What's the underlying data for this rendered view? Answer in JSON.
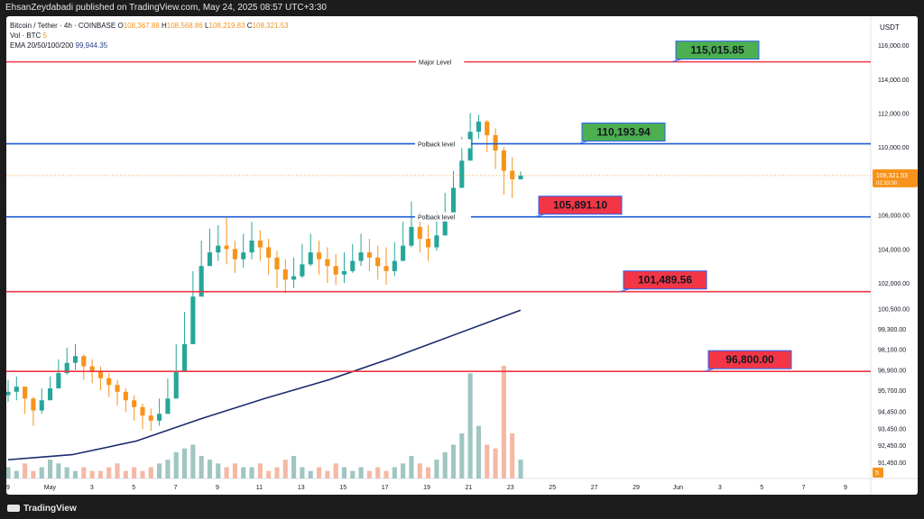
{
  "header": {
    "publisher_line": "EhsanZeydabadi published on TradingView.com, May 24, 2025 08:57 UTC+3:30"
  },
  "legend": {
    "symbol": "Bitcoin / Tether · 4h · COINBASE",
    "o_label": "O",
    "o_value": "108,367.88",
    "h_label": "H",
    "h_value": "108,568.86",
    "l_label": "L",
    "l_value": "108,219.83",
    "c_label": "C",
    "c_value": "108,321.53",
    "vol_label": "Vol · BTC",
    "vol_value": "5",
    "ema_label": "EMA 20/50/100/200",
    "ema_value": "99,944.35"
  },
  "footer": {
    "brand": "TradingView"
  },
  "chart_data": {
    "type": "candlestick",
    "currency": "USDT",
    "ylim": [
      90500,
      117700
    ],
    "y_ticks": [
      "116,000.00",
      "114,000.00",
      "112,000.00",
      "110,000.00",
      "108,000.00",
      "106,000.00",
      "104,000.00",
      "102,000.00",
      "100,500.00",
      "99,300.00",
      "98,100.00",
      "96,900.00",
      "95,700.00",
      "94,450.00",
      "93,450.00",
      "92,450.00",
      "91,450.00",
      "90,450.00"
    ],
    "x_ticks": [
      "9",
      "May",
      "3",
      "5",
      "7",
      "9",
      "11",
      "13",
      "15",
      "17",
      "19",
      "21",
      "23",
      "25",
      "27",
      "29",
      "Jun",
      "3",
      "5",
      "7",
      "9"
    ],
    "current_price": {
      "value": "108,321.53",
      "countdown": "02:33:00"
    },
    "volume_label": "5",
    "levels": [
      {
        "value": 115015.85,
        "label": "115,015.85",
        "line_label": "Major Level",
        "color": "#f23645",
        "box_color": "#4caf50"
      },
      {
        "value": 110193.94,
        "label": "110,193.94",
        "line_label": "Polback level",
        "color": "#1e5bd6",
        "box_color": "#4caf50"
      },
      {
        "value": 105891.1,
        "label": "105,891.10",
        "line_label": "Polback level",
        "color": "#1e5bd6",
        "box_color": "#f23645"
      },
      {
        "value": 101489.56,
        "label": "101,489.56",
        "line_label": "",
        "color": "#f23645",
        "box_color": "#f23645"
      },
      {
        "value": 96800.0,
        "label": "96,800.00",
        "line_label": "",
        "color": "#f23645",
        "box_color": "#f23645"
      }
    ],
    "ema200": [
      [
        0,
        91600
      ],
      [
        0.1,
        91900
      ],
      [
        0.2,
        92700
      ],
      [
        0.3,
        94000
      ],
      [
        0.4,
        95200
      ],
      [
        0.5,
        96300
      ],
      [
        0.6,
        97600
      ],
      [
        0.7,
        99000
      ],
      [
        0.8,
        100400
      ]
    ],
    "closes": [
      95600,
      95900,
      95200,
      94500,
      95100,
      95800,
      96700,
      97300,
      97700,
      97100,
      96800,
      96400,
      96000,
      95600,
      95100,
      94700,
      94200,
      93900,
      94300,
      95200,
      96800,
      98400,
      101200,
      103000,
      103800,
      104200,
      104000,
      103400,
      103800,
      104500,
      104100,
      103500,
      102800,
      102200,
      102400,
      103100,
      103800,
      103400,
      103000,
      102500,
      102700,
      103300,
      103800,
      103500,
      103000,
      102700,
      103300,
      104200,
      105300,
      104600,
      104100,
      104800,
      105900,
      107600,
      109200,
      110900,
      111500,
      110700,
      109800,
      108600,
      108100,
      108321.53
    ],
    "highs": [
      96300,
      96500,
      95900,
      95300,
      95800,
      96500,
      97500,
      98200,
      98400,
      97800,
      97500,
      97100,
      96700,
      96300,
      95800,
      95400,
      94900,
      94600,
      95200,
      96400,
      98400,
      100300,
      102700,
      104500,
      105200,
      105400,
      105900,
      104500,
      104900,
      105600,
      105100,
      104600,
      103900,
      103400,
      103500,
      104300,
      104900,
      104500,
      104100,
      103700,
      103800,
      104300,
      104900,
      104600,
      104200,
      104100,
      104400,
      105600,
      106800,
      106200,
      105400,
      106200,
      107300,
      108600,
      110600,
      112000,
      111900,
      111600,
      111100,
      110000,
      109400,
      108568.86
    ],
    "lows": [
      95000,
      95100,
      94300,
      93600,
      94300,
      95100,
      95900,
      96600,
      96900,
      96300,
      96100,
      95700,
      95300,
      94800,
      94400,
      93900,
      93400,
      93300,
      93600,
      94300,
      95800,
      97700,
      100400,
      102400,
      103000,
      103300,
      103100,
      102600,
      102900,
      103400,
      103300,
      102500,
      101700,
      101400,
      101700,
      102300,
      103000,
      102500,
      102000,
      101900,
      102000,
      102600,
      103000,
      102700,
      102200,
      101900,
      102400,
      103300,
      104100,
      103800,
      103300,
      103900,
      104900,
      106200,
      108100,
      109800,
      110500,
      109700,
      108700,
      107200,
      107000,
      108219.83
    ],
    "volumes": [
      3,
      2,
      4,
      2,
      3,
      5,
      4,
      3,
      2,
      3,
      2,
      2,
      3,
      4,
      2,
      3,
      2,
      3,
      4,
      5,
      7,
      8,
      9,
      6,
      5,
      4,
      3,
      4,
      3,
      3,
      4,
      2,
      3,
      5,
      6,
      3,
      2,
      3,
      2,
      4,
      3,
      2,
      3,
      2,
      3,
      2,
      3,
      4,
      6,
      4,
      3,
      5,
      7,
      9,
      12,
      28,
      14,
      9,
      8,
      30,
      12,
      5
    ]
  }
}
